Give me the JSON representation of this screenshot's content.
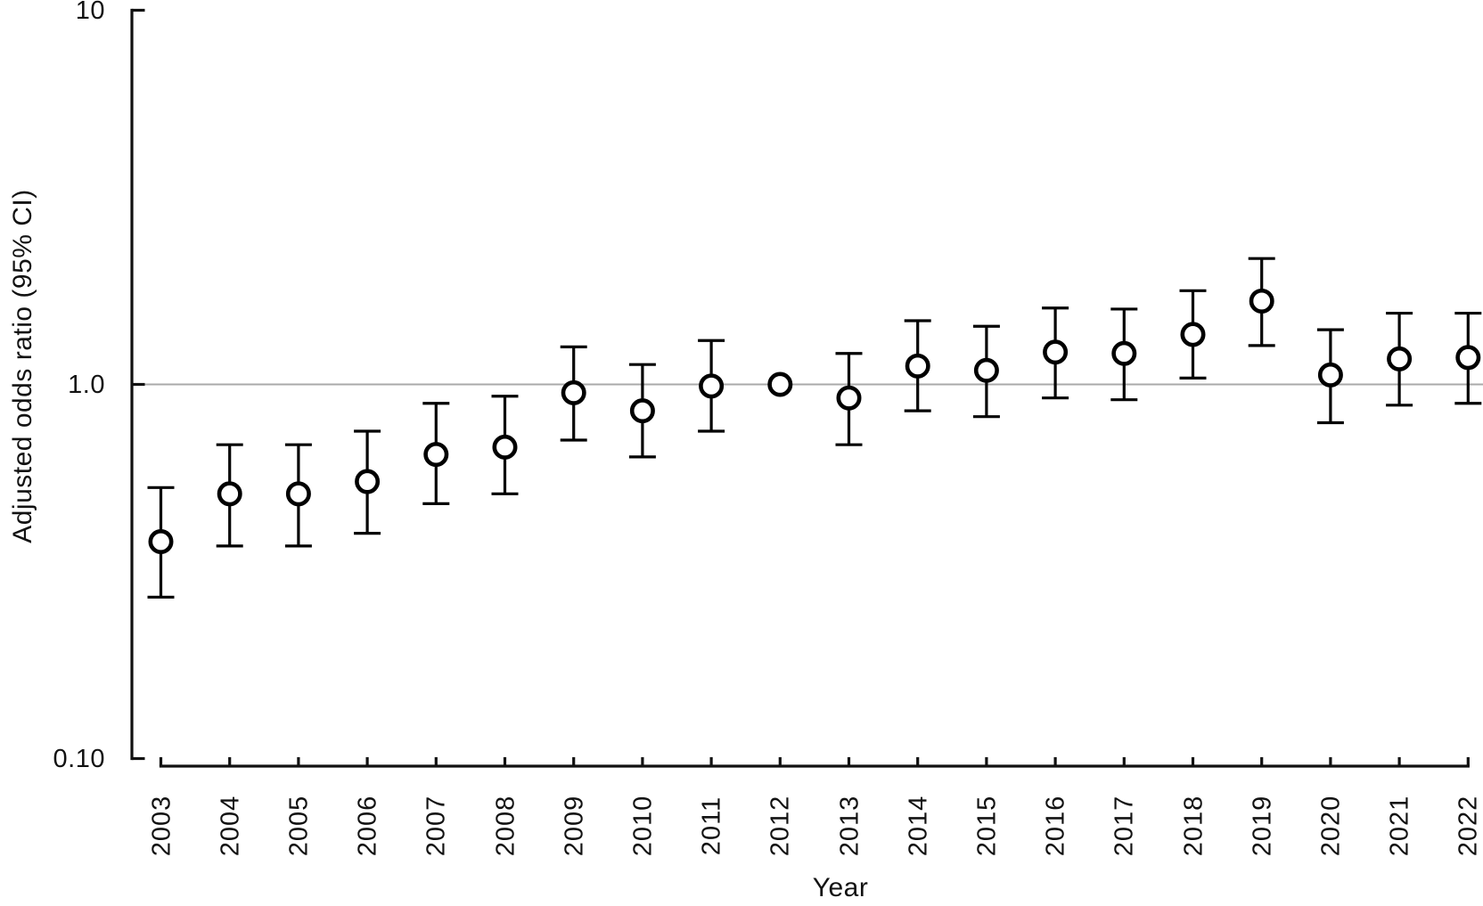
{
  "figure": {
    "background": "#ffffff",
    "text_color": "#121212",
    "axis_color": "#111111"
  },
  "chart_data": {
    "type": "scatter",
    "subtype": "errorbar",
    "title": "",
    "xlabel": "Year",
    "ylabel": "Adjusted odds ratio (95% CI)",
    "y_scale": "log",
    "ylim": [
      0.1,
      10
    ],
    "yticks": [
      {
        "value": 10,
        "label": "10"
      },
      {
        "value": 1.0,
        "label": "1.0"
      },
      {
        "value": 0.1,
        "label": "0.10"
      }
    ],
    "grid": false,
    "legend": null,
    "reference_line": {
      "value": 1.0,
      "color": "#a9a9a9"
    },
    "marker": {
      "shape": "open-circle",
      "fill": "#ffffff",
      "stroke": "#000000"
    },
    "points": [
      {
        "year": "2003",
        "or": 0.38,
        "ci_low": 0.27,
        "ci_high": 0.53
      },
      {
        "year": "2004",
        "or": 0.51,
        "ci_low": 0.37,
        "ci_high": 0.69
      },
      {
        "year": "2005",
        "or": 0.51,
        "ci_low": 0.37,
        "ci_high": 0.69
      },
      {
        "year": "2006",
        "or": 0.55,
        "ci_low": 0.4,
        "ci_high": 0.75
      },
      {
        "year": "2007",
        "or": 0.65,
        "ci_low": 0.48,
        "ci_high": 0.89
      },
      {
        "year": "2008",
        "or": 0.68,
        "ci_low": 0.51,
        "ci_high": 0.93
      },
      {
        "year": "2009",
        "or": 0.95,
        "ci_low": 0.71,
        "ci_high": 1.26
      },
      {
        "year": "2010",
        "or": 0.85,
        "ci_low": 0.64,
        "ci_high": 1.13
      },
      {
        "year": "2011",
        "or": 0.99,
        "ci_low": 0.75,
        "ci_high": 1.31
      },
      {
        "year": "2012",
        "or": 1.0,
        "ci_low": null,
        "ci_high": null
      },
      {
        "year": "2013",
        "or": 0.92,
        "ci_low": 0.69,
        "ci_high": 1.21
      },
      {
        "year": "2014",
        "or": 1.12,
        "ci_low": 0.85,
        "ci_high": 1.48
      },
      {
        "year": "2015",
        "or": 1.09,
        "ci_low": 0.82,
        "ci_high": 1.43
      },
      {
        "year": "2016",
        "or": 1.22,
        "ci_low": 0.92,
        "ci_high": 1.6
      },
      {
        "year": "2017",
        "or": 1.21,
        "ci_low": 0.91,
        "ci_high": 1.59
      },
      {
        "year": "2018",
        "or": 1.36,
        "ci_low": 1.04,
        "ci_high": 1.78
      },
      {
        "year": "2019",
        "or": 1.67,
        "ci_low": 1.27,
        "ci_high": 2.17
      },
      {
        "year": "2020",
        "or": 1.06,
        "ci_low": 0.79,
        "ci_high": 1.4
      },
      {
        "year": "2021",
        "or": 1.17,
        "ci_low": 0.88,
        "ci_high": 1.55
      },
      {
        "year": "2022",
        "or": 1.18,
        "ci_low": 0.89,
        "ci_high": 1.55
      }
    ]
  }
}
